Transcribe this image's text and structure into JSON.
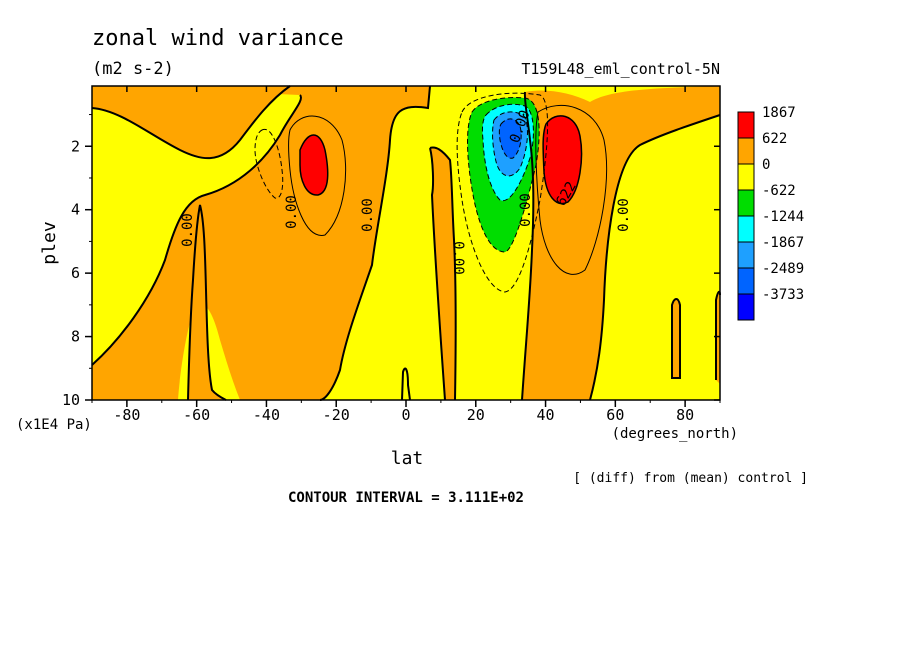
{
  "chart_data": {
    "type": "heatmap",
    "title": "zonal wind variance",
    "units": "(m2 s-2)",
    "run_label": "T159L48_eml_control-5N",
    "xlabel": "lat",
    "x_units": "(degrees_north)",
    "ylabel": "plev",
    "y_units": "(x1E4 Pa)",
    "xlim": [
      -90,
      90
    ],
    "ylim": [
      10,
      0.1
    ],
    "x_ticks": [
      -80,
      -60,
      -40,
      -20,
      0,
      20,
      40,
      60,
      80
    ],
    "y_ticks": [
      2,
      4,
      6,
      8,
      10
    ],
    "legend": {
      "labels": [
        "1867",
        "622",
        "0",
        "-622",
        "-1244",
        "-1867",
        "-2489",
        "-3733"
      ],
      "colors": [
        "#ff0000",
        "#ffa500",
        "#ffff00",
        "#00dd00",
        "#00ffff",
        "#1ea0ff",
        "#0064ff",
        "#0000ff"
      ]
    },
    "contour_labels": [
      "0.00",
      "0.00",
      "0.00",
      "0.00",
      "0.00",
      "0.00",
      "0.00",
      "622"
    ],
    "note": "[ (diff) from (mean) control ]",
    "contour_interval": "CONTOUR INTERVAL = 3.111E+02",
    "fill_colors": {
      "red": "#ff0000",
      "orange": "#ffa500",
      "yellow": "#ffff00",
      "green": "#00dd00",
      "cyan": "#00ffff",
      "lightblue": "#1ea0ff",
      "blue": "#0064ff"
    }
  }
}
